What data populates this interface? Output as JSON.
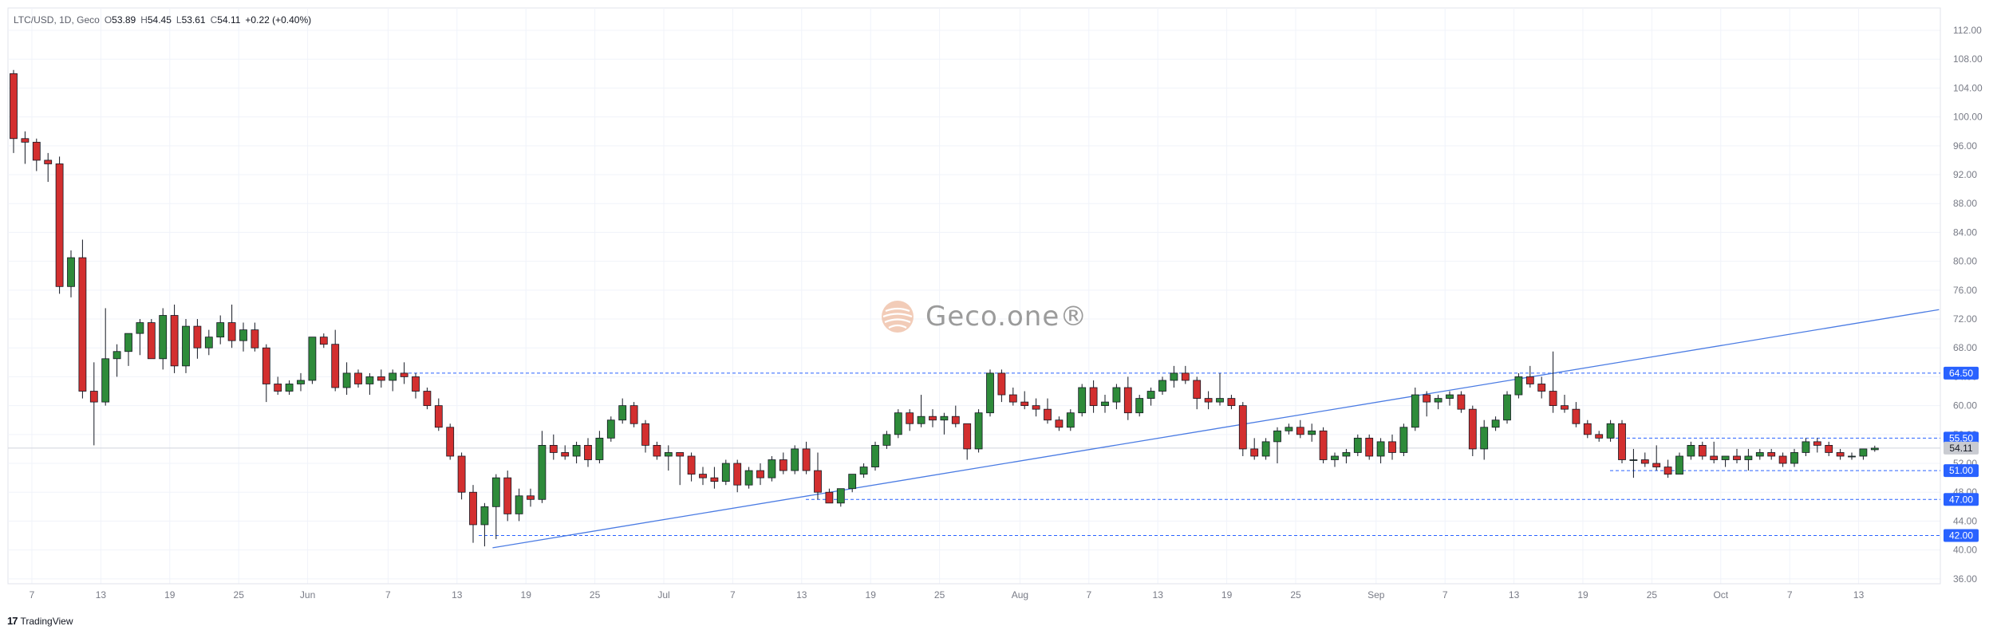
{
  "legend": {
    "symbol": "LTC/USD, 1D, Geco",
    "open_label": "O",
    "open": "53.89",
    "high_label": "H",
    "high": "54.45",
    "low_label": "L",
    "low": "53.61",
    "close_label": "C",
    "close": "54.11",
    "change": "+0.22 (+0.40%)"
  },
  "watermark": {
    "text": "Geco.one®"
  },
  "footer": {
    "brand": "TradingView",
    "logo_glyph": "17"
  },
  "colors": {
    "up": "#2e8b3a",
    "down": "#d32f2f",
    "grid": "#f0f3fa",
    "level_line": "#2962ff",
    "trend_line": "#4a7be3",
    "tag_bg": "#2962ff",
    "last_price_bg": "#c9cbd1"
  },
  "chart_data": {
    "type": "candlestick",
    "ylim": [
      34.6,
      113.5
    ],
    "y_ticks": [
      "36.00",
      "40.00",
      "44.00",
      "48.00",
      "52.00",
      "56.00",
      "60.00",
      "64.00",
      "68.00",
      "72.00",
      "76.00",
      "80.00",
      "84.00",
      "88.00",
      "92.00",
      "96.00",
      "100.00",
      "104.00",
      "108.00",
      "112.00"
    ],
    "x_ticks": [
      "7",
      "13",
      "19",
      "25",
      "Jun",
      "7",
      "13",
      "19",
      "25",
      "Jul",
      "7",
      "13",
      "19",
      "25",
      "Aug",
      "7",
      "13",
      "19",
      "25",
      "Sep",
      "7",
      "13",
      "19",
      "25",
      "Oct",
      "7",
      "13"
    ],
    "horizontal_levels": [
      {
        "price": 64.5,
        "label": "64.50"
      },
      {
        "price": 55.5,
        "label": "55.50"
      },
      {
        "price": 51.0,
        "label": "51.00"
      },
      {
        "price": 47.0,
        "label": "47.00"
      },
      {
        "price": 42.0,
        "label": "42.00"
      }
    ],
    "last_price": {
      "price": 54.11,
      "label": "54.11"
    },
    "trendline": {
      "start": {
        "index": 41,
        "price": 40.3
      },
      "end": {
        "index": 166,
        "price": 73.3
      }
    },
    "candles": [
      {
        "o": 106.0,
        "h": 106.5,
        "l": 95.0,
        "c": 97.0
      },
      {
        "o": 97.0,
        "h": 98.0,
        "l": 93.5,
        "c": 96.5
      },
      {
        "o": 96.5,
        "h": 97.0,
        "l": 92.5,
        "c": 94.0
      },
      {
        "o": 94.0,
        "h": 95.0,
        "l": 91.0,
        "c": 93.5
      },
      {
        "o": 93.5,
        "h": 94.5,
        "l": 75.5,
        "c": 76.5
      },
      {
        "o": 76.5,
        "h": 81.5,
        "l": 75.0,
        "c": 80.5
      },
      {
        "o": 80.5,
        "h": 83.0,
        "l": 61.0,
        "c": 62.0
      },
      {
        "o": 62.0,
        "h": 66.0,
        "l": 54.5,
        "c": 60.5
      },
      {
        "o": 60.5,
        "h": 73.5,
        "l": 60.0,
        "c": 66.5
      },
      {
        "o": 66.5,
        "h": 68.5,
        "l": 64.0,
        "c": 67.5
      },
      {
        "o": 67.5,
        "h": 70.0,
        "l": 65.5,
        "c": 70.0
      },
      {
        "o": 70.0,
        "h": 72.0,
        "l": 67.0,
        "c": 71.5
      },
      {
        "o": 71.5,
        "h": 72.0,
        "l": 66.5,
        "c": 66.5
      },
      {
        "o": 66.5,
        "h": 73.5,
        "l": 65.0,
        "c": 72.5
      },
      {
        "o": 72.5,
        "h": 74.0,
        "l": 64.5,
        "c": 65.5
      },
      {
        "o": 65.5,
        "h": 72.0,
        "l": 64.5,
        "c": 71.0
      },
      {
        "o": 71.0,
        "h": 72.0,
        "l": 66.5,
        "c": 68.0
      },
      {
        "o": 68.0,
        "h": 70.5,
        "l": 67.0,
        "c": 69.5
      },
      {
        "o": 69.5,
        "h": 72.5,
        "l": 68.5,
        "c": 71.5
      },
      {
        "o": 71.5,
        "h": 74.0,
        "l": 68.0,
        "c": 69.0
      },
      {
        "o": 69.0,
        "h": 71.5,
        "l": 67.5,
        "c": 70.5
      },
      {
        "o": 70.5,
        "h": 71.5,
        "l": 67.5,
        "c": 68.0
      },
      {
        "o": 68.0,
        "h": 68.5,
        "l": 60.5,
        "c": 63.0
      },
      {
        "o": 63.0,
        "h": 64.0,
        "l": 61.5,
        "c": 62.0
      },
      {
        "o": 62.0,
        "h": 63.5,
        "l": 61.5,
        "c": 63.0
      },
      {
        "o": 63.0,
        "h": 64.5,
        "l": 62.0,
        "c": 63.5
      },
      {
        "o": 63.5,
        "h": 69.5,
        "l": 63.0,
        "c": 69.5
      },
      {
        "o": 69.5,
        "h": 70.0,
        "l": 68.0,
        "c": 68.5
      },
      {
        "o": 68.5,
        "h": 70.5,
        "l": 62.0,
        "c": 62.5
      },
      {
        "o": 62.5,
        "h": 66.0,
        "l": 61.5,
        "c": 64.5
      },
      {
        "o": 64.5,
        "h": 65.0,
        "l": 62.5,
        "c": 63.0
      },
      {
        "o": 63.0,
        "h": 64.5,
        "l": 61.5,
        "c": 64.0
      },
      {
        "o": 64.0,
        "h": 65.0,
        "l": 62.5,
        "c": 63.5
      },
      {
        "o": 63.5,
        "h": 65.0,
        "l": 62.0,
        "c": 64.5
      },
      {
        "o": 64.5,
        "h": 66.0,
        "l": 63.0,
        "c": 64.0
      },
      {
        "o": 64.0,
        "h": 64.5,
        "l": 61.0,
        "c": 62.0
      },
      {
        "o": 62.0,
        "h": 62.5,
        "l": 59.5,
        "c": 60.0
      },
      {
        "o": 60.0,
        "h": 61.0,
        "l": 56.5,
        "c": 57.0
      },
      {
        "o": 57.0,
        "h": 57.5,
        "l": 52.5,
        "c": 53.0
      },
      {
        "o": 53.0,
        "h": 53.5,
        "l": 47.0,
        "c": 48.0
      },
      {
        "o": 48.0,
        "h": 49.0,
        "l": 41.0,
        "c": 43.5
      },
      {
        "o": 43.5,
        "h": 46.5,
        "l": 40.5,
        "c": 46.0
      },
      {
        "o": 46.0,
        "h": 50.5,
        "l": 41.5,
        "c": 50.0
      },
      {
        "o": 50.0,
        "h": 51.0,
        "l": 44.0,
        "c": 45.0
      },
      {
        "o": 45.0,
        "h": 48.5,
        "l": 44.0,
        "c": 47.5
      },
      {
        "o": 47.5,
        "h": 48.5,
        "l": 46.0,
        "c": 47.0
      },
      {
        "o": 47.0,
        "h": 56.5,
        "l": 46.5,
        "c": 54.5
      },
      {
        "o": 54.5,
        "h": 56.0,
        "l": 52.5,
        "c": 53.5
      },
      {
        "o": 53.5,
        "h": 54.5,
        "l": 52.5,
        "c": 53.0
      },
      {
        "o": 53.0,
        "h": 55.0,
        "l": 52.0,
        "c": 54.5
      },
      {
        "o": 54.5,
        "h": 55.5,
        "l": 51.5,
        "c": 52.5
      },
      {
        "o": 52.5,
        "h": 56.5,
        "l": 52.0,
        "c": 55.5
      },
      {
        "o": 55.5,
        "h": 58.5,
        "l": 55.0,
        "c": 58.0
      },
      {
        "o": 58.0,
        "h": 61.0,
        "l": 57.5,
        "c": 60.0
      },
      {
        "o": 60.0,
        "h": 60.5,
        "l": 57.0,
        "c": 57.5
      },
      {
        "o": 57.5,
        "h": 58.0,
        "l": 53.5,
        "c": 54.5
      },
      {
        "o": 54.5,
        "h": 55.0,
        "l": 52.5,
        "c": 53.0
      },
      {
        "o": 53.0,
        "h": 54.5,
        "l": 51.0,
        "c": 53.5
      },
      {
        "o": 53.5,
        "h": 53.5,
        "l": 49.0,
        "c": 53.0
      },
      {
        "o": 53.0,
        "h": 53.5,
        "l": 49.5,
        "c": 50.5
      },
      {
        "o": 50.5,
        "h": 51.5,
        "l": 49.0,
        "c": 50.0
      },
      {
        "o": 50.0,
        "h": 51.5,
        "l": 48.5,
        "c": 49.5
      },
      {
        "o": 49.5,
        "h": 52.5,
        "l": 49.0,
        "c": 52.0
      },
      {
        "o": 52.0,
        "h": 52.5,
        "l": 48.0,
        "c": 49.0
      },
      {
        "o": 49.0,
        "h": 51.5,
        "l": 48.5,
        "c": 51.0
      },
      {
        "o": 51.0,
        "h": 52.0,
        "l": 49.0,
        "c": 50.0
      },
      {
        "o": 50.0,
        "h": 53.0,
        "l": 49.5,
        "c": 52.5
      },
      {
        "o": 52.5,
        "h": 53.5,
        "l": 50.5,
        "c": 51.0
      },
      {
        "o": 51.0,
        "h": 54.5,
        "l": 50.5,
        "c": 54.0
      },
      {
        "o": 54.0,
        "h": 55.0,
        "l": 50.5,
        "c": 51.0
      },
      {
        "o": 51.0,
        "h": 53.5,
        "l": 47.0,
        "c": 48.0
      },
      {
        "o": 48.0,
        "h": 48.5,
        "l": 46.5,
        "c": 46.5
      },
      {
        "o": 46.5,
        "h": 48.5,
        "l": 46.0,
        "c": 48.5
      },
      {
        "o": 48.5,
        "h": 50.5,
        "l": 48.0,
        "c": 50.5
      },
      {
        "o": 50.5,
        "h": 52.0,
        "l": 50.0,
        "c": 51.5
      },
      {
        "o": 51.5,
        "h": 55.0,
        "l": 51.0,
        "c": 54.5
      },
      {
        "o": 54.5,
        "h": 56.5,
        "l": 54.0,
        "c": 56.0
      },
      {
        "o": 56.0,
        "h": 59.5,
        "l": 55.5,
        "c": 59.0
      },
      {
        "o": 59.0,
        "h": 59.5,
        "l": 56.5,
        "c": 57.5
      },
      {
        "o": 57.5,
        "h": 61.5,
        "l": 57.0,
        "c": 58.5
      },
      {
        "o": 58.5,
        "h": 59.5,
        "l": 57.0,
        "c": 58.0
      },
      {
        "o": 58.0,
        "h": 59.0,
        "l": 56.0,
        "c": 58.5
      },
      {
        "o": 58.5,
        "h": 60.0,
        "l": 57.0,
        "c": 57.5
      },
      {
        "o": 57.5,
        "h": 57.5,
        "l": 52.5,
        "c": 54.0
      },
      {
        "o": 54.0,
        "h": 59.5,
        "l": 53.5,
        "c": 59.0
      },
      {
        "o": 59.0,
        "h": 65.0,
        "l": 58.5,
        "c": 64.5
      },
      {
        "o": 64.5,
        "h": 65.0,
        "l": 60.5,
        "c": 61.5
      },
      {
        "o": 61.5,
        "h": 62.5,
        "l": 60.0,
        "c": 60.5
      },
      {
        "o": 60.5,
        "h": 62.0,
        "l": 59.5,
        "c": 60.0
      },
      {
        "o": 60.0,
        "h": 61.0,
        "l": 58.5,
        "c": 59.5
      },
      {
        "o": 59.5,
        "h": 61.0,
        "l": 57.5,
        "c": 58.0
      },
      {
        "o": 58.0,
        "h": 58.5,
        "l": 56.5,
        "c": 57.0
      },
      {
        "o": 57.0,
        "h": 59.5,
        "l": 56.5,
        "c": 59.0
      },
      {
        "o": 59.0,
        "h": 63.0,
        "l": 58.5,
        "c": 62.5
      },
      {
        "o": 62.5,
        "h": 63.5,
        "l": 59.0,
        "c": 60.0
      },
      {
        "o": 60.0,
        "h": 61.5,
        "l": 59.0,
        "c": 60.5
      },
      {
        "o": 60.5,
        "h": 63.0,
        "l": 59.5,
        "c": 62.5
      },
      {
        "o": 62.5,
        "h": 64.0,
        "l": 58.0,
        "c": 59.0
      },
      {
        "o": 59.0,
        "h": 61.5,
        "l": 58.5,
        "c": 61.0
      },
      {
        "o": 61.0,
        "h": 62.5,
        "l": 60.0,
        "c": 62.0
      },
      {
        "o": 62.0,
        "h": 64.0,
        "l": 61.5,
        "c": 63.5
      },
      {
        "o": 63.5,
        "h": 65.5,
        "l": 62.5,
        "c": 64.5
      },
      {
        "o": 64.5,
        "h": 65.5,
        "l": 63.0,
        "c": 63.5
      },
      {
        "o": 63.5,
        "h": 64.0,
        "l": 59.5,
        "c": 61.0
      },
      {
        "o": 61.0,
        "h": 62.0,
        "l": 59.5,
        "c": 60.5
      },
      {
        "o": 60.5,
        "h": 64.5,
        "l": 60.0,
        "c": 61.0
      },
      {
        "o": 61.0,
        "h": 61.5,
        "l": 59.5,
        "c": 60.0
      },
      {
        "o": 60.0,
        "h": 60.5,
        "l": 53.0,
        "c": 54.0
      },
      {
        "o": 54.0,
        "h": 55.5,
        "l": 52.5,
        "c": 53.0
      },
      {
        "o": 53.0,
        "h": 55.5,
        "l": 52.5,
        "c": 55.0
      },
      {
        "o": 55.0,
        "h": 57.0,
        "l": 52.0,
        "c": 56.5
      },
      {
        "o": 56.5,
        "h": 57.5,
        "l": 56.0,
        "c": 57.0
      },
      {
        "o": 57.0,
        "h": 58.0,
        "l": 55.5,
        "c": 56.0
      },
      {
        "o": 56.0,
        "h": 57.5,
        "l": 55.0,
        "c": 56.5
      },
      {
        "o": 56.5,
        "h": 57.0,
        "l": 52.0,
        "c": 52.5
      },
      {
        "o": 52.5,
        "h": 53.5,
        "l": 51.5,
        "c": 53.0
      },
      {
        "o": 53.0,
        "h": 54.0,
        "l": 52.0,
        "c": 53.5
      },
      {
        "o": 53.5,
        "h": 56.0,
        "l": 53.0,
        "c": 55.5
      },
      {
        "o": 55.5,
        "h": 56.0,
        "l": 52.5,
        "c": 53.0
      },
      {
        "o": 53.0,
        "h": 55.5,
        "l": 52.0,
        "c": 55.0
      },
      {
        "o": 55.0,
        "h": 56.0,
        "l": 52.5,
        "c": 53.5
      },
      {
        "o": 53.5,
        "h": 57.5,
        "l": 53.0,
        "c": 57.0
      },
      {
        "o": 57.0,
        "h": 62.5,
        "l": 56.5,
        "c": 61.5
      },
      {
        "o": 61.5,
        "h": 62.0,
        "l": 58.5,
        "c": 60.5
      },
      {
        "o": 60.5,
        "h": 61.5,
        "l": 59.5,
        "c": 61.0
      },
      {
        "o": 61.0,
        "h": 62.0,
        "l": 60.0,
        "c": 61.5
      },
      {
        "o": 61.5,
        "h": 62.0,
        "l": 59.0,
        "c": 59.5
      },
      {
        "o": 59.5,
        "h": 60.0,
        "l": 53.0,
        "c": 54.0
      },
      {
        "o": 54.0,
        "h": 58.0,
        "l": 52.5,
        "c": 57.0
      },
      {
        "o": 57.0,
        "h": 58.5,
        "l": 56.5,
        "c": 58.0
      },
      {
        "o": 58.0,
        "h": 62.0,
        "l": 57.5,
        "c": 61.5
      },
      {
        "o": 61.5,
        "h": 64.5,
        "l": 61.0,
        "c": 64.0
      },
      {
        "o": 64.0,
        "h": 65.5,
        "l": 62.5,
        "c": 63.0
      },
      {
        "o": 63.0,
        "h": 64.0,
        "l": 61.0,
        "c": 62.0
      },
      {
        "o": 62.0,
        "h": 67.5,
        "l": 59.0,
        "c": 60.0
      },
      {
        "o": 60.0,
        "h": 61.5,
        "l": 59.0,
        "c": 59.5
      },
      {
        "o": 59.5,
        "h": 60.5,
        "l": 57.0,
        "c": 57.5
      },
      {
        "o": 57.5,
        "h": 58.0,
        "l": 55.5,
        "c": 56.0
      },
      {
        "o": 56.0,
        "h": 56.5,
        "l": 55.0,
        "c": 55.5
      },
      {
        "o": 55.5,
        "h": 58.0,
        "l": 55.0,
        "c": 57.5
      },
      {
        "o": 57.5,
        "h": 58.0,
        "l": 52.0,
        "c": 52.5
      },
      {
        "o": 52.5,
        "h": 54.0,
        "l": 50.0,
        "c": 52.5
      },
      {
        "o": 52.5,
        "h": 53.5,
        "l": 51.5,
        "c": 52.0
      },
      {
        "o": 52.0,
        "h": 54.5,
        "l": 51.0,
        "c": 51.5
      },
      {
        "o": 51.5,
        "h": 52.5,
        "l": 50.0,
        "c": 50.5
      },
      {
        "o": 50.5,
        "h": 53.5,
        "l": 50.5,
        "c": 53.0
      },
      {
        "o": 53.0,
        "h": 55.0,
        "l": 52.5,
        "c": 54.5
      },
      {
        "o": 54.5,
        "h": 55.0,
        "l": 52.5,
        "c": 53.0
      },
      {
        "o": 53.0,
        "h": 55.0,
        "l": 52.0,
        "c": 52.5
      },
      {
        "o": 52.5,
        "h": 53.0,
        "l": 51.5,
        "c": 53.0
      },
      {
        "o": 53.0,
        "h": 54.0,
        "l": 52.0,
        "c": 52.5
      },
      {
        "o": 52.5,
        "h": 54.0,
        "l": 51.0,
        "c": 53.0
      },
      {
        "o": 53.0,
        "h": 54.0,
        "l": 52.5,
        "c": 53.5
      },
      {
        "o": 53.5,
        "h": 54.0,
        "l": 52.5,
        "c": 53.0
      },
      {
        "o": 53.0,
        "h": 53.5,
        "l": 51.5,
        "c": 52.0
      },
      {
        "o": 52.0,
        "h": 54.0,
        "l": 51.5,
        "c": 53.5
      },
      {
        "o": 53.5,
        "h": 55.5,
        "l": 53.0,
        "c": 55.0
      },
      {
        "o": 55.0,
        "h": 55.5,
        "l": 53.5,
        "c": 54.5
      },
      {
        "o": 54.5,
        "h": 55.0,
        "l": 53.0,
        "c": 53.5
      },
      {
        "o": 53.5,
        "h": 54.0,
        "l": 52.5,
        "c": 53.0
      },
      {
        "o": 53.0,
        "h": 53.5,
        "l": 52.5,
        "c": 53.0
      },
      {
        "o": 53.0,
        "h": 54.0,
        "l": 52.5,
        "c": 54.0
      },
      {
        "o": 53.89,
        "h": 54.45,
        "l": 53.61,
        "c": 54.11
      }
    ]
  }
}
